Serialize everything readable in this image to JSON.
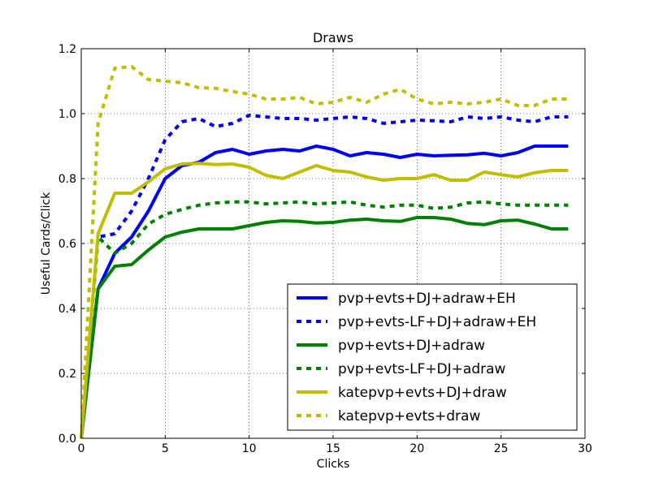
{
  "chart_data": {
    "type": "line",
    "title": "Draws",
    "xlabel": "Clicks",
    "ylabel": "Useful Cards/Click",
    "xlim": [
      0,
      30
    ],
    "ylim": [
      0.0,
      1.2
    ],
    "xticks": [
      0,
      5,
      10,
      15,
      20,
      25,
      30
    ],
    "yticks": [
      0.0,
      0.2,
      0.4,
      0.6,
      0.8,
      1.0,
      1.2
    ],
    "xtick_labels": [
      "0",
      "5",
      "10",
      "15",
      "20",
      "25",
      "30"
    ],
    "ytick_labels": [
      "0.0",
      "0.2",
      "0.4",
      "0.6",
      "0.8",
      "1.0",
      "1.2"
    ],
    "grid": true,
    "legend_position": "lower-right",
    "x": [
      0,
      1,
      2,
      3,
      4,
      5,
      6,
      7,
      8,
      9,
      10,
      11,
      12,
      13,
      14,
      15,
      16,
      17,
      18,
      19,
      20,
      21,
      22,
      23,
      24,
      25,
      26,
      27,
      28,
      29
    ],
    "series": [
      {
        "name": "pvp+evts+DJ+adraw+EH",
        "color": "#0000ff",
        "style": "solid",
        "values": [
          0.0,
          0.46,
          0.57,
          0.62,
          0.7,
          0.8,
          0.84,
          0.85,
          0.88,
          0.89,
          0.875,
          0.885,
          0.89,
          0.885,
          0.9,
          0.89,
          0.87,
          0.88,
          0.875,
          0.865,
          0.875,
          0.87,
          0.872,
          0.873,
          0.878,
          0.87,
          0.88,
          0.9,
          0.9,
          0.9
        ]
      },
      {
        "name": "pvp+evts-LF+DJ+adraw+EH",
        "color": "#0000ff",
        "style": "dashed",
        "values": [
          0.0,
          0.62,
          0.63,
          0.7,
          0.8,
          0.92,
          0.975,
          0.985,
          0.96,
          0.97,
          0.995,
          0.99,
          0.985,
          0.985,
          0.98,
          0.985,
          0.99,
          0.985,
          0.97,
          0.975,
          0.98,
          0.978,
          0.975,
          0.99,
          0.985,
          0.99,
          0.98,
          0.975,
          0.99,
          0.99
        ]
      },
      {
        "name": "pvp+evts+DJ+adraw",
        "color": "#008000",
        "style": "solid",
        "values": [
          0.0,
          0.46,
          0.53,
          0.535,
          0.58,
          0.62,
          0.635,
          0.645,
          0.645,
          0.645,
          0.655,
          0.665,
          0.67,
          0.668,
          0.663,
          0.665,
          0.672,
          0.675,
          0.67,
          0.668,
          0.68,
          0.68,
          0.675,
          0.662,
          0.658,
          0.67,
          0.672,
          0.66,
          0.645,
          0.645
        ]
      },
      {
        "name": "pvp+evts-LF+DJ+adraw",
        "color": "#008000",
        "style": "dashed",
        "values": [
          0.0,
          0.62,
          0.57,
          0.6,
          0.66,
          0.69,
          0.705,
          0.718,
          0.725,
          0.728,
          0.728,
          0.722,
          0.725,
          0.728,
          0.722,
          0.725,
          0.728,
          0.718,
          0.712,
          0.718,
          0.718,
          0.708,
          0.712,
          0.725,
          0.728,
          0.722,
          0.718,
          0.718,
          0.718,
          0.718
        ]
      },
      {
        "name": "katepvp+evts+DJ+draw",
        "color": "#bfbf00",
        "style": "solid",
        "values": [
          0.0,
          0.63,
          0.755,
          0.755,
          0.79,
          0.83,
          0.845,
          0.847,
          0.843,
          0.845,
          0.835,
          0.81,
          0.8,
          0.82,
          0.84,
          0.825,
          0.82,
          0.805,
          0.795,
          0.8,
          0.8,
          0.812,
          0.795,
          0.795,
          0.82,
          0.812,
          0.805,
          0.818,
          0.825,
          0.825
        ]
      },
      {
        "name": "katepvp+evts+draw",
        "color": "#bfbf00",
        "style": "dashed",
        "values": [
          0.0,
          0.97,
          1.14,
          1.145,
          1.105,
          1.1,
          1.095,
          1.08,
          1.078,
          1.068,
          1.06,
          1.045,
          1.045,
          1.05,
          1.03,
          1.035,
          1.05,
          1.035,
          1.06,
          1.075,
          1.045,
          1.03,
          1.035,
          1.03,
          1.035,
          1.045,
          1.025,
          1.025,
          1.045,
          1.045
        ]
      }
    ]
  }
}
